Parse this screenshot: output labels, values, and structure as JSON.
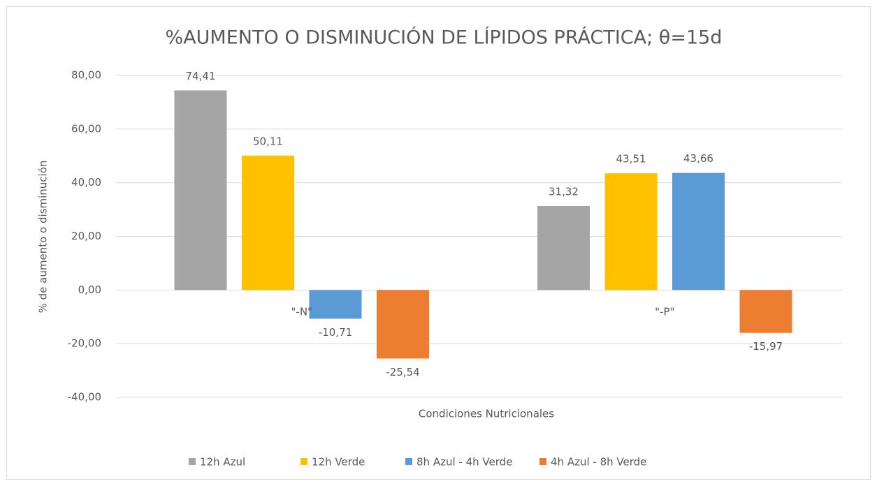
{
  "chart_data": {
    "type": "bar",
    "title": "%AUMENTO O DISMINUCIÓN  DE LÍPIDOS PRÁCTICA; θ=15d",
    "x_label": "Condiciones Nutricionales",
    "y_label": "% de aumento o disminución",
    "categories": [
      "\"-N\"",
      "\"-P\""
    ],
    "series": [
      {
        "name": "12h Azul",
        "color": "#a5a5a5",
        "values": [
          74.41,
          31.32
        ],
        "value_labels": [
          "74,41",
          "31,32"
        ]
      },
      {
        "name": "12h Verde",
        "color": "#ffc000",
        "values": [
          50.11,
          43.51
        ],
        "value_labels": [
          "50,11",
          "43,51"
        ]
      },
      {
        "name": "8h Azul - 4h Verde",
        "color": "#5b9bd5",
        "values": [
          -10.71,
          43.66
        ],
        "value_labels": [
          "-10,71",
          "43,66"
        ]
      },
      {
        "name": "4h Azul - 8h Verde",
        "color": "#ed7d31",
        "values": [
          -25.54,
          -15.97
        ],
        "value_labels": [
          "-25,54",
          "-15,97"
        ]
      }
    ],
    "ylim": [
      -40,
      80
    ],
    "yticks": [
      {
        "value": -40,
        "label": "-40,00"
      },
      {
        "value": -20,
        "label": "-20,00"
      },
      {
        "value": 0,
        "label": "0,00"
      },
      {
        "value": 20,
        "label": "20,00"
      },
      {
        "value": 40,
        "label": "40,00"
      },
      {
        "value": 60,
        "label": "60,00"
      },
      {
        "value": 80,
        "label": "80,00"
      }
    ],
    "grid": true,
    "legend": "bottom"
  }
}
